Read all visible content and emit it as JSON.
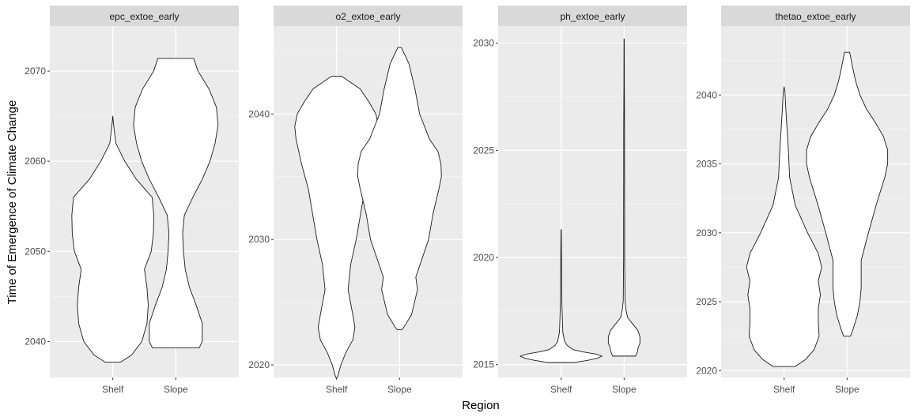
{
  "chart_data": {
    "type": "violin",
    "xlabel": "Region",
    "ylabel": "Time of Emergence of Climate Change",
    "categories": [
      "Shelf",
      "Slope"
    ],
    "facets": [
      {
        "name": "epc_extoe_early",
        "ylim": [
          2036,
          2075
        ],
        "yticks": [
          2040,
          2050,
          2060,
          2070
        ],
        "violins": [
          {
            "category": "Shelf",
            "outline": [
              [
                2037.7,
                0.18
              ],
              [
                2038.5,
                0.44
              ],
              [
                2040,
                0.68
              ],
              [
                2042,
                0.8
              ],
              [
                2044,
                0.83
              ],
              [
                2046,
                0.8
              ],
              [
                2048,
                0.74
              ],
              [
                2050,
                0.9
              ],
              [
                2052,
                0.95
              ],
              [
                2054,
                0.96
              ],
              [
                2056,
                0.92
              ],
              [
                2058,
                0.55
              ],
              [
                2060,
                0.28
              ],
              [
                2062,
                0.07
              ],
              [
                2064,
                0.02
              ],
              [
                2065,
                0.0
              ]
            ]
          },
          {
            "category": "Slope",
            "outline": [
              [
                2039.3,
                0.55
              ],
              [
                2040,
                0.62
              ],
              [
                2042,
                0.62
              ],
              [
                2044,
                0.48
              ],
              [
                2046,
                0.32
              ],
              [
                2048,
                0.22
              ],
              [
                2050,
                0.18
              ],
              [
                2052,
                0.16
              ],
              [
                2054,
                0.2
              ],
              [
                2056,
                0.4
              ],
              [
                2058,
                0.62
              ],
              [
                2060,
                0.8
              ],
              [
                2062,
                0.92
              ],
              [
                2064,
                0.99
              ],
              [
                2066,
                0.95
              ],
              [
                2068,
                0.78
              ],
              [
                2070,
                0.52
              ],
              [
                2071.4,
                0.42
              ]
            ]
          }
        ]
      },
      {
        "name": "o2_extoe_early",
        "ylim": [
          2019,
          2047
        ],
        "yticks": [
          2020,
          2030,
          2040
        ],
        "violins": [
          {
            "category": "Shelf",
            "outline": [
              [
                2019,
                0.02
              ],
              [
                2020,
                0.1
              ],
              [
                2021,
                0.22
              ],
              [
                2022,
                0.38
              ],
              [
                2023,
                0.43
              ],
              [
                2024,
                0.38
              ],
              [
                2026,
                0.27
              ],
              [
                2028,
                0.33
              ],
              [
                2030,
                0.46
              ],
              [
                2032,
                0.56
              ],
              [
                2034,
                0.66
              ],
              [
                2036,
                0.82
              ],
              [
                2038,
                0.95
              ],
              [
                2039,
                0.98
              ],
              [
                2040,
                0.92
              ],
              [
                2041,
                0.75
              ],
              [
                2042,
                0.55
              ],
              [
                2043,
                0.12
              ]
            ]
          },
          {
            "category": "Slope",
            "outline": [
              [
                2022.8,
                0.05
              ],
              [
                2023,
                0.1
              ],
              [
                2024,
                0.28
              ],
              [
                2026,
                0.42
              ],
              [
                2027,
                0.38
              ],
              [
                2028,
                0.48
              ],
              [
                2030,
                0.68
              ],
              [
                2032,
                0.78
              ],
              [
                2034,
                0.92
              ],
              [
                2035,
                0.98
              ],
              [
                2036,
                0.97
              ],
              [
                2037,
                0.9
              ],
              [
                2038,
                0.7
              ],
              [
                2040,
                0.47
              ],
              [
                2042,
                0.36
              ],
              [
                2044,
                0.22
              ],
              [
                2045.3,
                0.04
              ]
            ]
          }
        ]
      },
      {
        "name": "ph_extoe_early",
        "ylim": [
          2014.4,
          2030.8
        ],
        "yticks": [
          2015,
          2020,
          2025,
          2030
        ],
        "violins": [
          {
            "category": "Shelf",
            "outline": [
              [
                2015.1,
                0.3
              ],
              [
                2015.2,
                0.62
              ],
              [
                2015.3,
                0.85
              ],
              [
                2015.4,
                0.96
              ],
              [
                2015.5,
                0.8
              ],
              [
                2015.6,
                0.5
              ],
              [
                2015.7,
                0.28
              ],
              [
                2015.9,
                0.14
              ],
              [
                2016.1,
                0.08
              ],
              [
                2016.5,
                0.04
              ],
              [
                2017.0,
                0.03
              ],
              [
                2018.0,
                0.015
              ],
              [
                2019.0,
                0.012
              ],
              [
                2020.0,
                0.008
              ],
              [
                2021.3,
                0.003
              ]
            ]
          },
          {
            "category": "Slope",
            "outline": [
              [
                2015.4,
                0.27
              ],
              [
                2015.6,
                0.31
              ],
              [
                2015.8,
                0.33
              ],
              [
                2016.0,
                0.37
              ],
              [
                2016.3,
                0.37
              ],
              [
                2016.6,
                0.32
              ],
              [
                2016.9,
                0.2
              ],
              [
                2017.2,
                0.08
              ],
              [
                2017.6,
                0.04
              ],
              [
                2018.0,
                0.02
              ],
              [
                2020.0,
                0.012
              ],
              [
                2022.0,
                0.012
              ],
              [
                2024.0,
                0.01
              ],
              [
                2026.0,
                0.01
              ],
              [
                2028.0,
                0.005
              ],
              [
                2030.2,
                0.003
              ]
            ]
          }
        ]
      },
      {
        "name": "thetao_extoe_early",
        "ylim": [
          2019.5,
          2045
        ],
        "yticks": [
          2020,
          2025,
          2030,
          2035,
          2040
        ],
        "violins": [
          {
            "category": "Shelf",
            "outline": [
              [
                2020.3,
                0.26
              ],
              [
                2020.8,
                0.5
              ],
              [
                2021.5,
                0.7
              ],
              [
                2022.5,
                0.82
              ],
              [
                2023.5,
                0.8
              ],
              [
                2024.5,
                0.8
              ],
              [
                2025.5,
                0.85
              ],
              [
                2026.5,
                0.8
              ],
              [
                2027.5,
                0.88
              ],
              [
                2028.5,
                0.8
              ],
              [
                2030,
                0.55
              ],
              [
                2032,
                0.26
              ],
              [
                2034,
                0.13
              ],
              [
                2036,
                0.1
              ],
              [
                2038,
                0.06
              ],
              [
                2039,
                0.04
              ],
              [
                2040.2,
                0.02
              ],
              [
                2040.6,
                0.0
              ]
            ]
          },
          {
            "category": "Slope",
            "outline": [
              [
                2022.5,
                0.08
              ],
              [
                2023,
                0.14
              ],
              [
                2024,
                0.24
              ],
              [
                2025,
                0.3
              ],
              [
                2026,
                0.33
              ],
              [
                2028,
                0.33
              ],
              [
                2030,
                0.5
              ],
              [
                2032,
                0.68
              ],
              [
                2034,
                0.88
              ],
              [
                2035,
                0.95
              ],
              [
                2036,
                0.95
              ],
              [
                2037,
                0.85
              ],
              [
                2038,
                0.66
              ],
              [
                2039,
                0.45
              ],
              [
                2040,
                0.3
              ],
              [
                2041,
                0.2
              ],
              [
                2042,
                0.13
              ],
              [
                2043.1,
                0.06
              ]
            ]
          }
        ]
      }
    ]
  }
}
